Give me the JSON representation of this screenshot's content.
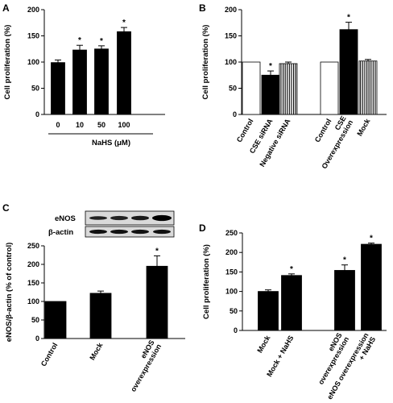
{
  "chart_data": [
    {
      "panel": "A",
      "type": "bar",
      "ylabel": "Cell proliferation (%)",
      "xlabel": "NaHS (μM)",
      "ylim": [
        0,
        200
      ],
      "yticks": [
        0,
        50,
        100,
        150,
        200
      ],
      "categories": [
        "0",
        "10",
        "50",
        "100"
      ],
      "values": [
        99,
        123,
        125,
        158
      ],
      "errors": [
        5,
        9,
        6,
        8
      ],
      "significant": [
        false,
        true,
        true,
        true
      ],
      "fills": [
        "solid",
        "solid",
        "solid",
        "solid"
      ]
    },
    {
      "panel": "B",
      "type": "bar",
      "ylabel": "Cell proliferation (%)",
      "ylim": [
        0,
        200
      ],
      "yticks": [
        0,
        50,
        100,
        150,
        200
      ],
      "categories": [
        "Control",
        "CSE siRNA",
        "Negative siRNA",
        "Control",
        "CSE Overexpression",
        "Mock"
      ],
      "values": [
        100,
        75,
        97,
        100,
        162,
        102
      ],
      "errors": [
        0,
        8,
        3,
        0,
        14,
        3
      ],
      "significant": [
        false,
        true,
        false,
        false,
        true,
        false
      ],
      "fills": [
        "white",
        "solid",
        "striped",
        "white",
        "solid",
        "striped"
      ]
    },
    {
      "panel": "C",
      "type": "bar",
      "ylabel": "eNOS/β-actin (% of control)",
      "ylim": [
        0,
        250
      ],
      "yticks": [
        0,
        50,
        100,
        150,
        200,
        250
      ],
      "categories": [
        "Control",
        "Mock",
        "eNOS overexpression"
      ],
      "values": [
        100,
        122,
        195
      ],
      "errors": [
        0,
        6,
        28
      ],
      "significant": [
        false,
        false,
        true
      ],
      "fills": [
        "solid",
        "solid",
        "solid"
      ],
      "blot_labels": [
        "eNOS",
        "β-actin"
      ]
    },
    {
      "panel": "D",
      "type": "bar",
      "ylabel": "Cell proliferation (%)",
      "ylim": [
        0,
        250
      ],
      "yticks": [
        0,
        50,
        100,
        150,
        200,
        250
      ],
      "categories": [
        "Mock",
        "Mock + NaHS",
        "eNOS overexpression",
        "eNOS overexpression + NaHS"
      ],
      "values": [
        100,
        141,
        154,
        221
      ],
      "errors": [
        4,
        4,
        14,
        3
      ],
      "significant": [
        false,
        true,
        true,
        true
      ],
      "fills": [
        "solid",
        "solid",
        "solid",
        "solid"
      ]
    }
  ],
  "significance_mark": "*",
  "colors": {
    "bar": "#000000",
    "open": "#ffffff",
    "stroke": "#000000"
  }
}
